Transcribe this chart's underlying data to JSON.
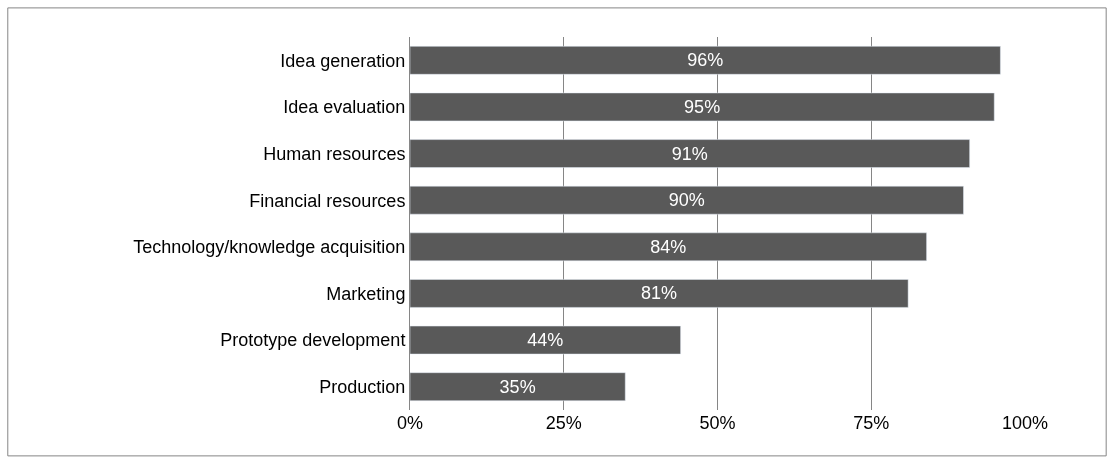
{
  "chart_data": {
    "type": "bar",
    "orientation": "horizontal",
    "categories": [
      "Idea generation",
      "Idea evaluation",
      "Human resources",
      "Financial resources",
      "Technology/knowledge acquisition",
      "Marketing",
      "Prototype development",
      "Production"
    ],
    "values": [
      96,
      95,
      91,
      90,
      84,
      81,
      44,
      35
    ],
    "value_labels": [
      "96%",
      "95%",
      "91%",
      "90%",
      "84%",
      "81%",
      "44%",
      "35%"
    ],
    "color": "#595959",
    "xlim": [
      0,
      100
    ],
    "xticks": [
      {
        "value": 0,
        "label": "0%"
      },
      {
        "value": 25,
        "label": "25%"
      },
      {
        "value": 50,
        "label": "50%"
      },
      {
        "value": 75,
        "label": "75%"
      },
      {
        "value": 100,
        "label": "100%"
      }
    ],
    "grid": "x",
    "legend": false
  }
}
